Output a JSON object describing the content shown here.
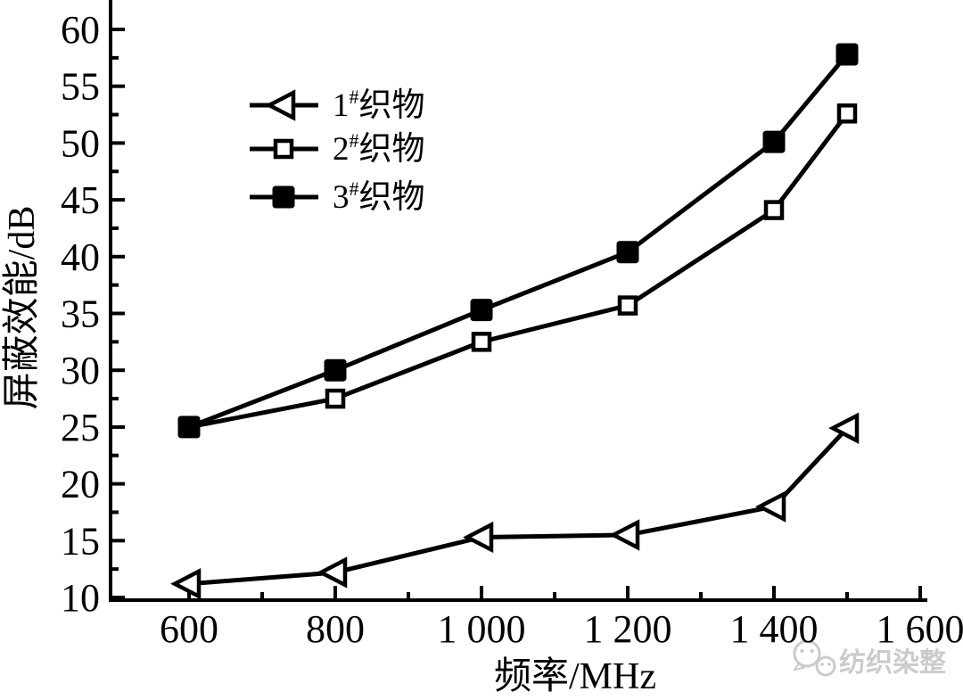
{
  "chart_data": {
    "type": "line",
    "title": "",
    "xlabel": "频率/MHz",
    "ylabel": "屏蔽效能/dB",
    "x": [
      600,
      800,
      1000,
      1200,
      1400,
      1500
    ],
    "series": [
      {
        "name": "1#织物",
        "label": {
          "prefix": "1",
          "sup": "#",
          "suffix": "织物"
        },
        "marker": "triangle-left-open",
        "values": [
          11.2,
          12.2,
          15.3,
          15.5,
          18.0,
          24.9
        ]
      },
      {
        "name": "2#织物",
        "label": {
          "prefix": "2",
          "sup": "#",
          "suffix": "织物"
        },
        "marker": "square-open",
        "values": [
          25.0,
          27.5,
          32.5,
          35.7,
          44.1,
          52.6
        ]
      },
      {
        "name": "3#织物",
        "label": {
          "prefix": "3",
          "sup": "#",
          "suffix": "织物"
        },
        "marker": "square-filled",
        "values": [
          25.0,
          30.0,
          35.3,
          40.4,
          50.1,
          57.8
        ]
      }
    ],
    "xlim": [
      600,
      1600
    ],
    "ylim": [
      10,
      60
    ],
    "xticks": {
      "values": [
        600,
        800,
        1000,
        1200,
        1400,
        1600
      ],
      "labels": [
        "600",
        "800",
        "1 000",
        "1 200",
        "1 400",
        "1 600"
      ],
      "minor": [
        700,
        900,
        1100,
        1300,
        1500
      ]
    },
    "yticks": {
      "values": [
        10,
        15,
        20,
        25,
        30,
        35,
        40,
        45,
        50,
        55,
        60
      ],
      "labels": [
        "10",
        "15",
        "20",
        "25",
        "30",
        "35",
        "40",
        "45",
        "50",
        "55",
        "60"
      ],
      "minor_step": 2.5
    },
    "grid": false,
    "legend_position": "upper-left-inside",
    "colors": {
      "line": "#000000",
      "background": "#ffffff",
      "watermark": "#cbcbcb"
    }
  },
  "watermark": {
    "text": "纺织染整"
  }
}
